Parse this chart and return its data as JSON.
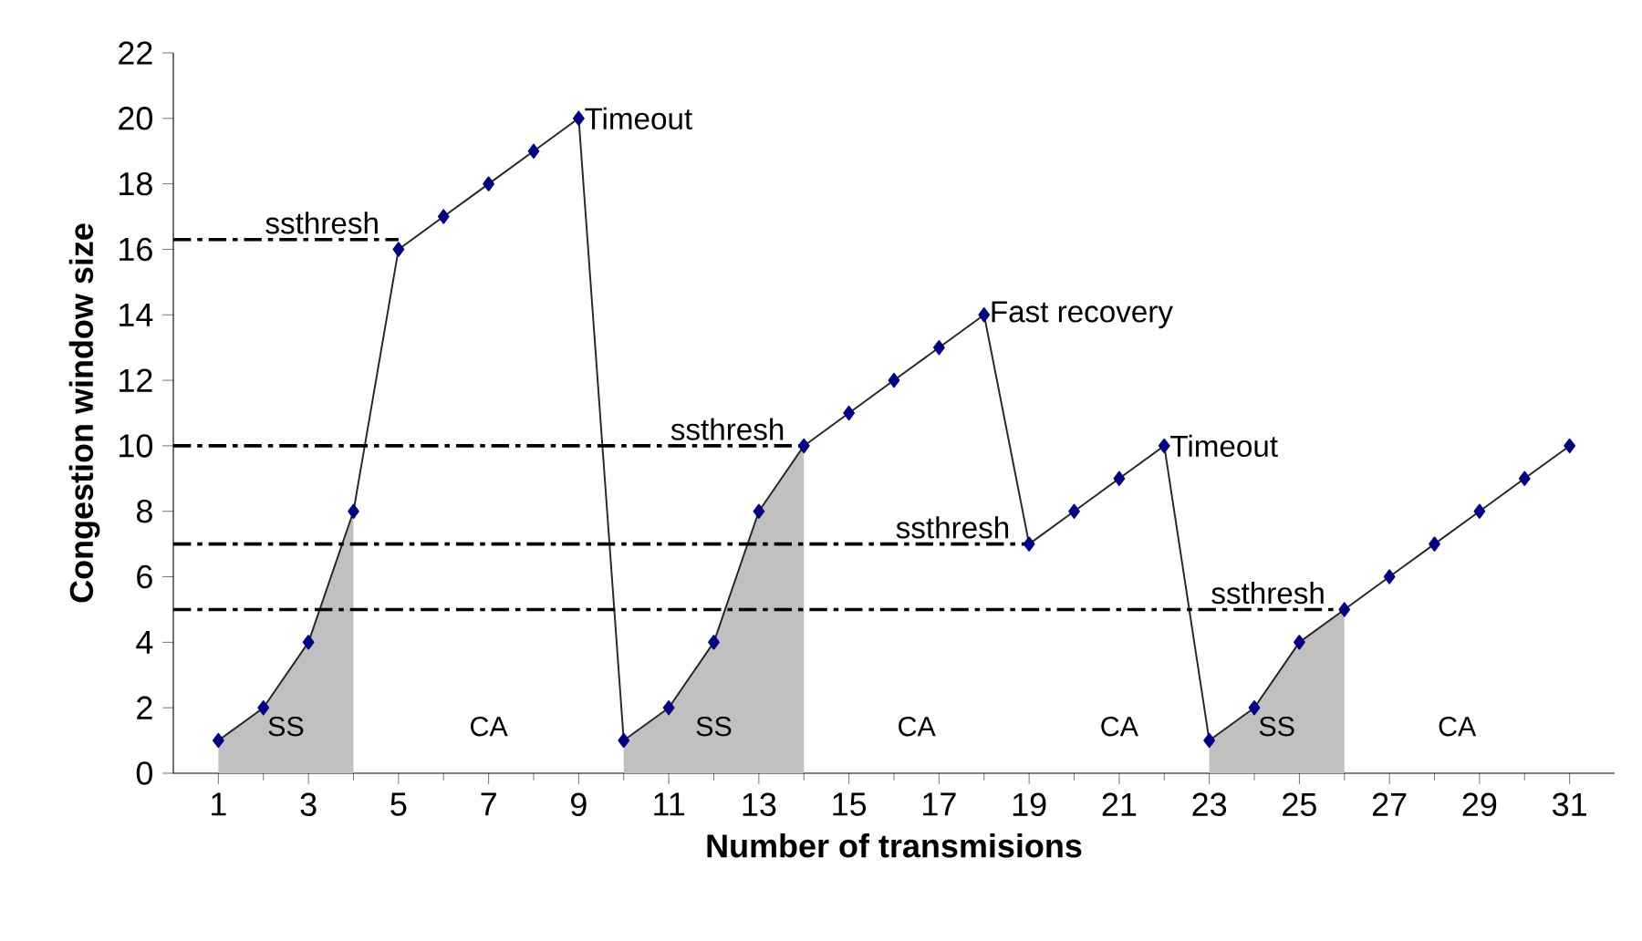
{
  "chart_data": {
    "type": "line",
    "xlabel": "Number of transmisions",
    "ylabel": "Congestion window size",
    "xlim": [
      0,
      32
    ],
    "ylim": [
      0,
      22
    ],
    "xticks": [
      1,
      3,
      5,
      7,
      9,
      11,
      13,
      15,
      17,
      19,
      21,
      23,
      25,
      27,
      29,
      31
    ],
    "yticks": [
      0,
      2,
      4,
      6,
      8,
      10,
      12,
      14,
      16,
      18,
      20,
      22
    ],
    "grid": false,
    "series": [
      {
        "type": "area",
        "color": "#c0c0c0",
        "x": [
          1,
          2,
          3,
          4
        ],
        "values": [
          1,
          2,
          4,
          8
        ]
      },
      {
        "type": "area",
        "color": "#c0c0c0",
        "x": [
          10,
          11,
          12,
          13,
          14
        ],
        "values": [
          1,
          2,
          4,
          8,
          10
        ]
      },
      {
        "type": "area",
        "color": "#c0c0c0",
        "x": [
          23,
          24,
          25,
          26
        ],
        "values": [
          1,
          2,
          4,
          5
        ]
      },
      {
        "color": "#000080",
        "marker": "diamond",
        "line_style": "solid",
        "x": [
          1,
          2,
          3,
          4,
          5,
          6,
          7,
          8,
          9,
          10,
          11,
          12,
          13,
          14,
          15,
          16,
          17,
          18,
          19,
          20,
          21,
          22,
          23,
          24,
          25,
          26,
          27,
          28,
          29,
          30,
          31
        ],
        "values": [
          1,
          2,
          4,
          8,
          16,
          17,
          18,
          19,
          20,
          1,
          2,
          4,
          8,
          10,
          11,
          12,
          13,
          14,
          7,
          8,
          9,
          10,
          1,
          2,
          4,
          5,
          6,
          7,
          8,
          9,
          10
        ]
      }
    ],
    "ref_lines": [
      {
        "axis": "y",
        "value": 16.3,
        "label": "ssthresh",
        "line_style": "dashdot"
      },
      {
        "axis": "y",
        "value": 10,
        "label": "ssthresh",
        "line_style": "dashdot"
      },
      {
        "axis": "y",
        "value": 7,
        "label": "ssthresh",
        "line_style": "dashdot"
      },
      {
        "axis": "y",
        "value": 5,
        "label": "ssthresh",
        "line_style": "dashdot"
      }
    ],
    "annotations": [
      {
        "text": "Timeout",
        "x": 9,
        "y": 20
      },
      {
        "text": "Fast recovery",
        "x": 18,
        "y": 14
      },
      {
        "text": "Timeout",
        "x": 22,
        "y": 10
      },
      "SS",
      "CA",
      "SS",
      "CA",
      "CA",
      "SS",
      "CA"
    ]
  }
}
